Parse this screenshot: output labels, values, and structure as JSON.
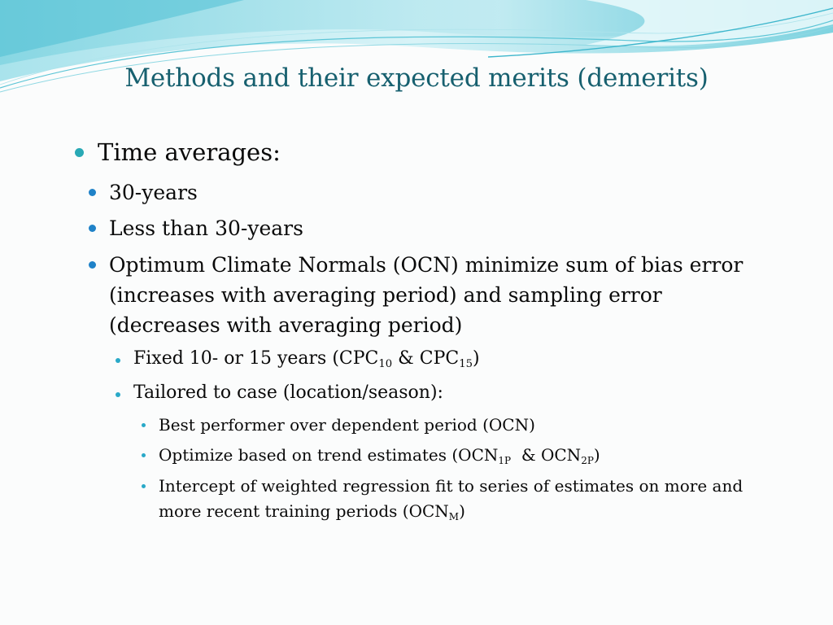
{
  "slide": {
    "title": "Methods and their expected merits (demerits)",
    "colors": {
      "title": "#17606f",
      "bullet_l1": "#29a9b5",
      "bullet_l2": "#1f82c8",
      "bullet_l3": "#29a9c8",
      "wave_light": "#bfe9f0",
      "wave_dark": "#5fc8d8"
    },
    "bullets": {
      "b1": "Time averages:",
      "b1_1": "30-years",
      "b1_2": "Less than 30-years",
      "b1_3_line1": "Optimum Climate Normals (OCN) minimize sum of bias error",
      "b1_3_line2": "(increases with averaging period) and sampling error",
      "b1_3_line3": "(decreases with averaging period)",
      "b1_3_1_pre": "Fixed 10- or 15 years (CPC",
      "b1_3_1_sub1": "10",
      "b1_3_1_mid": " & CPC",
      "b1_3_1_sub2": "15",
      "b1_3_1_post": ")",
      "b1_3_2": "Tailored to case (location/season):",
      "b1_3_2_1": "Best performer over dependent period (OCN)",
      "b1_3_2_2_pre": "Optimize based on trend estimates (OCN",
      "b1_3_2_2_sub1": "1P",
      "b1_3_2_2_mid": "  & OCN",
      "b1_3_2_2_sub2": "2P",
      "b1_3_2_2_post": ")",
      "b1_3_2_3_line1": "Intercept of weighted regression fit to series of estimates on more and",
      "b1_3_2_3_line2_pre": "more recent training periods (OCN",
      "b1_3_2_3_sub": "M",
      "b1_3_2_3_post": ")"
    }
  }
}
